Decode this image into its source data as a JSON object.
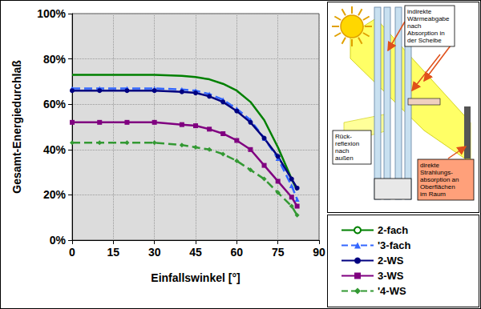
{
  "chart_data": {
    "type": "line",
    "x_label": "Einfallswinkel [°]",
    "y_label": "Gesamt-Energiedurchlaß",
    "x": [
      0,
      10,
      20,
      30,
      40,
      45,
      50,
      55,
      60,
      65,
      70,
      75,
      80,
      82
    ],
    "series": [
      {
        "name": "2-fach",
        "color": "#008000",
        "line_style": "solid",
        "values": [
          73,
          73,
          73,
          73,
          72.5,
          72,
          71,
          69,
          66,
          61,
          53,
          41,
          27,
          22
        ]
      },
      {
        "name": "'3-fach",
        "color": "#3366ff",
        "line_style": "dashed",
        "marker": "triangle",
        "values": [
          67,
          67,
          67,
          67,
          66.5,
          66,
          64.5,
          62,
          58,
          53,
          45,
          36,
          24,
          18
        ]
      },
      {
        "name": "2-WS",
        "color": "#000080",
        "line_style": "solid",
        "marker": "circle",
        "values": [
          66,
          66,
          66,
          66,
          65.5,
          65,
          63.5,
          61,
          57,
          52,
          45,
          37,
          27,
          23
        ]
      },
      {
        "name": "3-WS",
        "color": "#800080",
        "line_style": "solid",
        "marker": "square",
        "values": [
          52,
          52,
          52,
          52,
          51,
          50.5,
          49,
          47,
          44,
          40,
          33,
          26,
          19,
          15
        ]
      },
      {
        "name": "'4-WS",
        "color": "#339933",
        "line_style": "dashed",
        "marker": "diamond",
        "values": [
          43,
          43,
          43,
          43,
          42,
          41,
          40,
          38,
          35,
          31,
          27,
          21,
          15,
          11
        ]
      }
    ],
    "xlim": [
      0,
      90
    ],
    "xticks": [
      0,
      15,
      30,
      45,
      60,
      75,
      90
    ],
    "ylim": [
      0,
      100
    ],
    "yticks": [
      {
        "value": 0,
        "label": "0%"
      },
      {
        "value": 20,
        "label": "20%"
      },
      {
        "value": 40,
        "label": "40%"
      },
      {
        "value": 60,
        "label": "60%"
      },
      {
        "value": 80,
        "label": "80%"
      },
      {
        "value": 100,
        "label": "100%"
      }
    ],
    "grid": true,
    "legend": "right"
  },
  "diagram": {
    "heat_release": [
      "indirekte",
      "Wärmeabgabe",
      "nach",
      "Absorption in",
      "der Scheibe"
    ],
    "back_reflection": [
      "Rück-",
      "reflexion",
      "nach",
      "außen"
    ],
    "direct_absorption": [
      "direkte",
      "Strahlungs-",
      "absorption an",
      "Oberflächen",
      "im Raum"
    ]
  }
}
